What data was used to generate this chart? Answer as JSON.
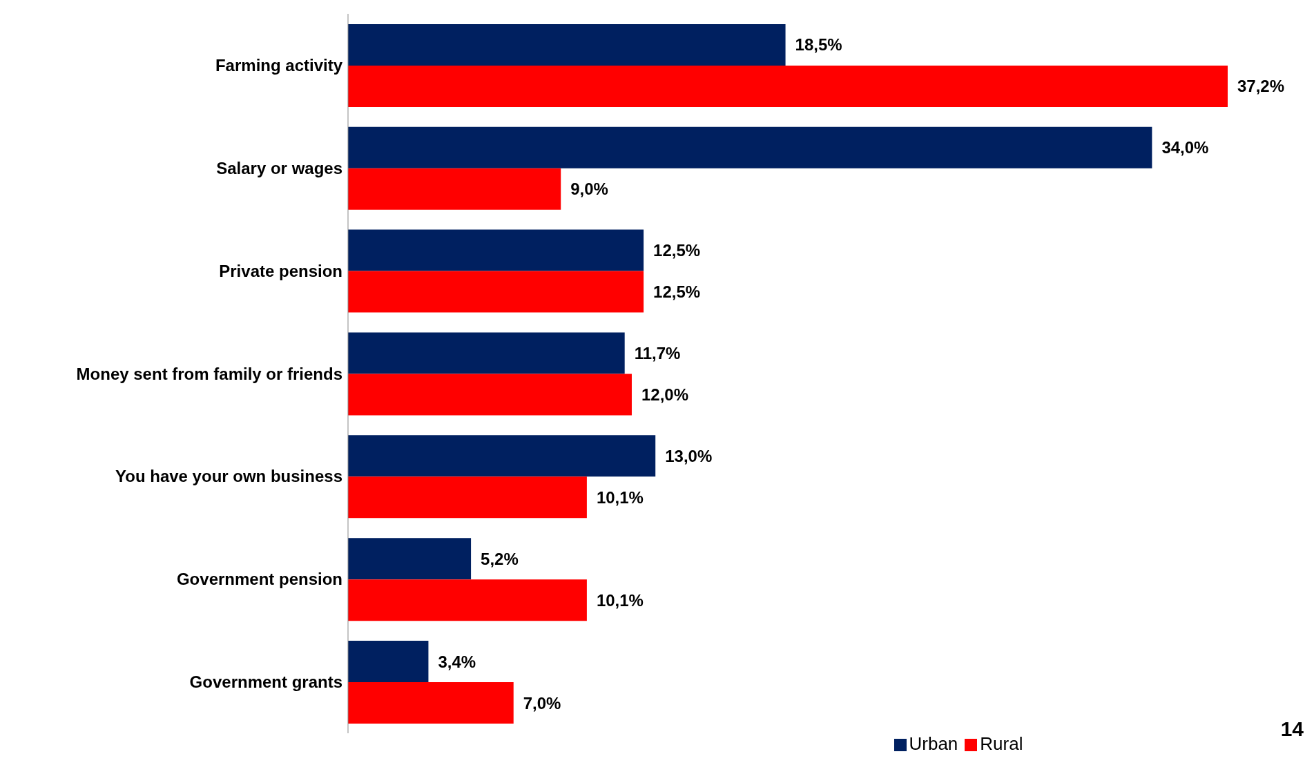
{
  "chart_data": {
    "type": "bar",
    "orientation": "horizontal",
    "categories": [
      "Farming activity",
      "Salary or wages",
      "Private pension",
      "Money sent from family or friends",
      "You have your own business",
      "Government pension",
      "Government grants"
    ],
    "series": [
      {
        "name": "Urban",
        "color": "#002060",
        "values": [
          18.5,
          34.0,
          12.5,
          11.7,
          13.0,
          5.2,
          3.4
        ],
        "value_labels": [
          "18,5%",
          "34,0%",
          "12,5%",
          "11,7%",
          "13,0%",
          "5,2%",
          "3,4%"
        ]
      },
      {
        "name": "Rural",
        "color": "#ff0000",
        "values": [
          37.2,
          9.0,
          12.5,
          12.0,
          10.1,
          10.1,
          7.0
        ],
        "value_labels": [
          "37,2%",
          "9,0%",
          "12,5%",
          "12,0%",
          "10,1%",
          "10,1%",
          "7,0%"
        ]
      }
    ],
    "legend": "bottom",
    "tick_labels": "y",
    "annotations": [
      "14"
    ]
  }
}
